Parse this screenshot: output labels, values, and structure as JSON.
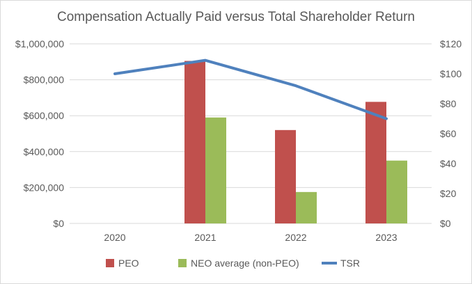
{
  "chart_data": {
    "type": "bar",
    "title": "Compensation Actually Paid versus Total Shareholder Return",
    "categories": [
      "2020",
      "2021",
      "2022",
      "2023"
    ],
    "series": [
      {
        "name": "PEO",
        "kind": "bar",
        "axis": "left",
        "color": "#c0504d",
        "values": [
          null,
          905000,
          520000,
          677000
        ]
      },
      {
        "name": "NEO average (non-PEO)",
        "kind": "bar",
        "axis": "left",
        "color": "#9bbb59",
        "values": [
          null,
          590000,
          175000,
          350000
        ]
      },
      {
        "name": "TSR",
        "kind": "line",
        "axis": "right",
        "color": "#4f81bd",
        "values": [
          100,
          109,
          92,
          70
        ]
      }
    ],
    "y_left": {
      "ylim": [
        0,
        1000000
      ],
      "ticks": [
        "$0",
        "$200,000",
        "$400,000",
        "$600,000",
        "$800,000",
        "$1,000,000"
      ]
    },
    "y_right": {
      "ylim": [
        0,
        120
      ],
      "ticks": [
        "$0",
        "$20",
        "$40",
        "$60",
        "$80",
        "$100",
        "$120"
      ]
    },
    "grid": true,
    "legend_position": "bottom"
  }
}
